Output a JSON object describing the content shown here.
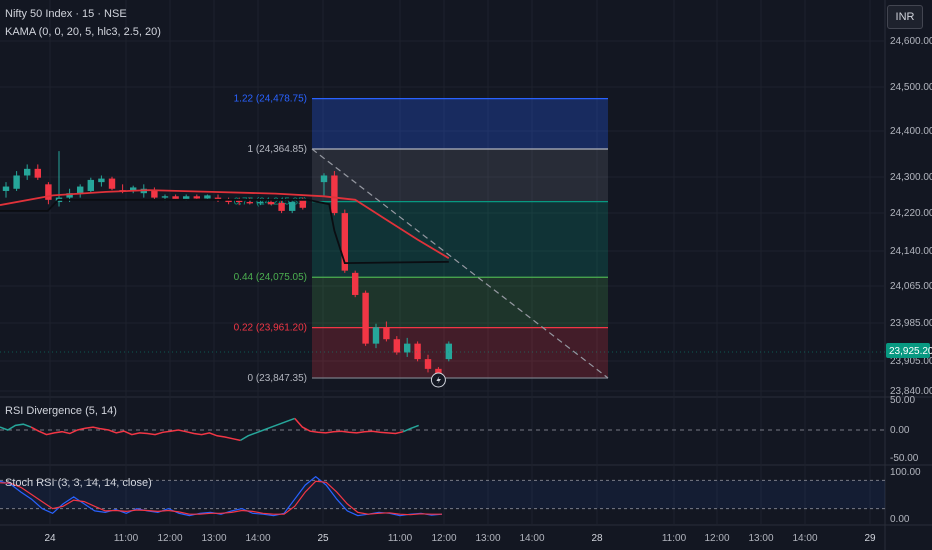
{
  "header": {
    "symbol_title": "Nifty 50 Index · 15 · NSE",
    "indicator_kama": "KAMA (0, 0, 20, 5, hlc3, 2.5, 20)",
    "currency_button": "INR"
  },
  "panes": {
    "rsi_div_title": "RSI Divergence (5, 14)",
    "stoch_title": "Stoch RSI (3, 3, 14, 14, close)"
  },
  "colors": {
    "background": "#131722",
    "up": "#26a69a",
    "down": "#f23645",
    "kama": "#000000",
    "ma": "#e0323a",
    "grid": "#1e222d",
    "axis_text": "#b2b5be"
  },
  "chart_data": [
    {
      "type": "candlestick",
      "title": "Nifty 50 Index · 15 · NSE",
      "y_axis_ticks": [
        24600,
        24500,
        24400,
        24300,
        24220,
        24140,
        24065,
        23985,
        23905,
        23840
      ],
      "y_axis_tick_labels": [
        "24,600.00",
        "24,500.00",
        "24,400.00",
        "24,300.00",
        "24,220.00",
        "24,140.00",
        "24,065.00",
        "23,985.00",
        "23,905.00",
        "23,840.00"
      ],
      "last_price_label": "23,925.20",
      "ylim": [
        23820,
        24670
      ],
      "x_axis_labels": [
        "24",
        "11:00",
        "12:00",
        "13:00",
        "14:00",
        "25",
        "11:00",
        "12:00",
        "13:00",
        "14:00",
        "28",
        "11:00",
        "12:00",
        "13:00",
        "14:00",
        "29"
      ],
      "day1_candles": [
        {
          "o": 24270,
          "h": 24290,
          "l": 24255,
          "c": 24280
        },
        {
          "o": 24275,
          "h": 24315,
          "l": 24270,
          "c": 24305
        },
        {
          "o": 24305,
          "h": 24330,
          "l": 24295,
          "c": 24320
        },
        {
          "o": 24320,
          "h": 24330,
          "l": 24295,
          "c": 24300
        },
        {
          "o": 24285,
          "h": 24290,
          "l": 24240,
          "c": 24250
        },
        {
          "o": 24245,
          "h": 24360,
          "l": 24235,
          "c": 24255
        },
        {
          "o": 24255,
          "h": 24275,
          "l": 24245,
          "c": 24265
        },
        {
          "o": 24265,
          "h": 24285,
          "l": 24255,
          "c": 24280
        },
        {
          "o": 24270,
          "h": 24300,
          "l": 24265,
          "c": 24295
        },
        {
          "o": 24290,
          "h": 24305,
          "l": 24280,
          "c": 24298
        },
        {
          "o": 24298,
          "h": 24302,
          "l": 24272,
          "c": 24275
        },
        {
          "o": 24272,
          "h": 24285,
          "l": 24265,
          "c": 24270
        },
        {
          "o": 24270,
          "h": 24282,
          "l": 24265,
          "c": 24278
        },
        {
          "o": 24265,
          "h": 24285,
          "l": 24255,
          "c": 24275
        },
        {
          "o": 24272,
          "h": 24278,
          "l": 24250,
          "c": 24255
        },
        {
          "o": 24255,
          "h": 24262,
          "l": 24248,
          "c": 24258
        },
        {
          "o": 24258,
          "h": 24262,
          "l": 24250,
          "c": 24252
        },
        {
          "o": 24252,
          "h": 24262,
          "l": 24248,
          "c": 24258
        },
        {
          "o": 24258,
          "h": 24262,
          "l": 24250,
          "c": 24253
        },
        {
          "o": 24253,
          "h": 24262,
          "l": 24250,
          "c": 24260
        },
        {
          "o": 24255,
          "h": 24262,
          "l": 24245,
          "c": 24250
        },
        {
          "o": 24250,
          "h": 24255,
          "l": 24240,
          "c": 24245
        },
        {
          "o": 24248,
          "h": 24255,
          "l": 24238,
          "c": 24245
        },
        {
          "o": 24245,
          "h": 24255,
          "l": 24240,
          "c": 24242
        },
        {
          "o": 24242,
          "h": 24250,
          "l": 24238,
          "c": 24245
        },
        {
          "o": 24245,
          "h": 24252,
          "l": 24238,
          "c": 24240
        },
        {
          "o": 24243,
          "h": 24248,
          "l": 24220,
          "c": 24225
        },
        {
          "o": 24225,
          "h": 24250,
          "l": 24220,
          "c": 24245
        },
        {
          "o": 24250,
          "h": 24255,
          "l": 24228,
          "c": 24232
        }
      ],
      "day2_candles": [
        {
          "o": 24290,
          "h": 24310,
          "l": 24260,
          "c": 24305
        },
        {
          "o": 24305,
          "h": 24315,
          "l": 24215,
          "c": 24220
        },
        {
          "o": 24220,
          "h": 24228,
          "l": 24085,
          "c": 24090
        },
        {
          "o": 24085,
          "h": 24090,
          "l": 24030,
          "c": 24035
        },
        {
          "o": 24040,
          "h": 24045,
          "l": 23920,
          "c": 23925
        },
        {
          "o": 23925,
          "h": 23970,
          "l": 23915,
          "c": 23962
        },
        {
          "o": 23962,
          "h": 23975,
          "l": 23930,
          "c": 23935
        },
        {
          "o": 23935,
          "h": 23942,
          "l": 23900,
          "c": 23905
        },
        {
          "o": 23905,
          "h": 23938,
          "l": 23895,
          "c": 23925
        },
        {
          "o": 23925,
          "h": 23930,
          "l": 23885,
          "c": 23890
        },
        {
          "o": 23890,
          "h": 23900,
          "l": 23860,
          "c": 23868
        },
        {
          "o": 23868,
          "h": 23872,
          "l": 23848,
          "c": 23850
        },
        {
          "o": 23890,
          "h": 23930,
          "l": 23885,
          "c": 23925
        }
      ],
      "fibonacci": [
        {
          "ratio": "1.22",
          "label": "1.22 (24,478.75)",
          "price": 24478.75,
          "color": "#2962ff"
        },
        {
          "ratio": "1",
          "label": "1 (24,364.85)",
          "price": 24364.85,
          "color": "#b2b5be"
        },
        {
          "ratio": "0.77",
          "label": "0.77 (24,245.85)",
          "price": 24245.85,
          "color": "#089981"
        },
        {
          "ratio": "0.44",
          "label": "0.44 (24,075.05)",
          "price": 24075.05,
          "color": "#4caf50"
        },
        {
          "ratio": "0.22",
          "label": "0.22 (23,961.20)",
          "price": 23961.2,
          "color": "#f23645"
        },
        {
          "ratio": "0",
          "label": "0 (23,847.35)",
          "price": 23847.35,
          "color": "#787b86"
        }
      ],
      "kama_line": [
        {
          "t": 0,
          "v": 24225
        },
        {
          "t": 4.5,
          "v": 24225
        },
        {
          "t": 5.5,
          "v": 24250
        },
        {
          "t": 29,
          "v": 24250
        },
        {
          "t": 30.5,
          "v": 24240
        },
        {
          "t": 31,
          "v": 24180
        },
        {
          "t": 32,
          "v": 24107
        },
        {
          "t": 42,
          "v": 24110
        }
      ],
      "ma_line": [
        {
          "t": 0,
          "v": 24238
        },
        {
          "t": 5,
          "v": 24260
        },
        {
          "t": 10,
          "v": 24268
        },
        {
          "t": 14,
          "v": 24272
        },
        {
          "t": 20,
          "v": 24268
        },
        {
          "t": 26,
          "v": 24264
        },
        {
          "t": 30,
          "v": 24258
        },
        {
          "t": 33,
          "v": 24250
        },
        {
          "t": 36,
          "v": 24205
        },
        {
          "t": 39,
          "v": 24160
        },
        {
          "t": 42,
          "v": 24118
        }
      ]
    },
    {
      "type": "line",
      "title": "RSI Divergence (5, 14)",
      "y_axis_tick_labels": [
        "50.00",
        "0.00",
        "-50.00"
      ],
      "ylim": [
        -70,
        70
      ],
      "zero_line": 0,
      "series": [
        {
          "color": "#26a69a",
          "values": [
            5,
            0,
            8,
            10,
            5
          ]
        },
        {
          "color": "#f23645",
          "values": [
            5,
            -2,
            -8,
            -5,
            -3,
            -6,
            0,
            3,
            5,
            2,
            0,
            -5,
            -2,
            -8,
            -5,
            -6,
            -8,
            -4,
            -2,
            0,
            -3,
            -6,
            -8,
            -5,
            -10,
            -12,
            -15,
            -18
          ]
        },
        {
          "color": "#26a69a",
          "values": [
            -18,
            -10,
            -5,
            0,
            5,
            10,
            15,
            20
          ]
        },
        {
          "color": "#f23645",
          "values": [
            20,
            5,
            -2,
            -4,
            -5,
            -3,
            -2,
            -4,
            -5,
            -3,
            -2,
            -4,
            -5,
            -6,
            -3
          ]
        },
        {
          "color": "#26a69a",
          "values": [
            -3,
            3,
            8
          ]
        }
      ]
    },
    {
      "type": "line",
      "title": "Stoch RSI (3, 3, 14, 14, close)",
      "y_axis_tick_labels": [
        "100.00",
        "0.00"
      ],
      "ylim": [
        -5,
        105
      ],
      "band": [
        20,
        80
      ],
      "series": [
        {
          "color": "#2962ff",
          "values": [
            78,
            72,
            55,
            40,
            20,
            10,
            30,
            45,
            30,
            15,
            12,
            18,
            10,
            20,
            15,
            12,
            20,
            10,
            5,
            10,
            12,
            8,
            15,
            20,
            10,
            8,
            5,
            10,
            40,
            70,
            88,
            70,
            40,
            15,
            5,
            8,
            12,
            10,
            5,
            8,
            10,
            6,
            8
          ]
        },
        {
          "color": "#f23645",
          "values": [
            75,
            74,
            65,
            50,
            35,
            20,
            25,
            38,
            35,
            25,
            15,
            16,
            14,
            17,
            16,
            14,
            16,
            13,
            8,
            8,
            10,
            10,
            12,
            16,
            14,
            10,
            8,
            8,
            25,
            55,
            78,
            76,
            55,
            30,
            12,
            8,
            10,
            11,
            8,
            7,
            9,
            8,
            8
          ]
        }
      ]
    }
  ]
}
